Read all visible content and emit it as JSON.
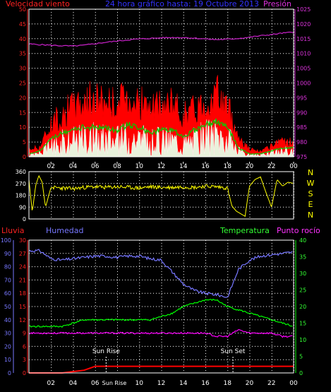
{
  "header": {
    "left_title": "Velocidad viento",
    "center_title": "24 hora gráfico hasta: 19 Octubre 2013",
    "right_title": "Presión"
  },
  "colors": {
    "wind": "#ff0000",
    "gust_area": "#ff0000",
    "avg_wind": "#00cc00",
    "bearing": "#ffff00",
    "pressure": "#cc22cc",
    "humidity": "#7777ff",
    "temperature": "#00ff00",
    "dewpoint": "#ff00ff",
    "rain": "#ff0000",
    "grid": "#ffffff",
    "background": "#000000"
  },
  "time_axis": {
    "ticks": [
      "02",
      "04",
      "06",
      "08",
      "10",
      "12",
      "14",
      "16",
      "18",
      "20",
      "22",
      "00"
    ]
  },
  "panel2_labels": [
    "N",
    "W",
    "S",
    "E",
    "N"
  ],
  "panel3_headers": {
    "rain": "Lluvia",
    "humidity": "Humedad",
    "temperature": "Temperatura",
    "dewpoint": "Punto rocío"
  },
  "annotations": {
    "sun_rise": "Sun Rise",
    "sun_set": "Sun Set",
    "sun_rise_axis": "Sun Rise"
  },
  "chart_data": [
    {
      "type": "line",
      "name": "wind",
      "y_left_ticks": [
        "0",
        "5",
        "10",
        "15",
        "20",
        "25",
        "30",
        "35",
        "40",
        "45",
        "50"
      ],
      "ylim_left": [
        0,
        50
      ],
      "y_right_ticks": [
        "975",
        "980",
        "985",
        "990",
        "995",
        "1000",
        "1005",
        "1010",
        "1015",
        "1020",
        "1025"
      ],
      "ylim_right": [
        975,
        1025
      ],
      "hours": [
        0,
        1,
        2,
        3,
        4,
        5,
        6,
        7,
        8,
        9,
        10,
        11,
        12,
        13,
        14,
        15,
        16,
        17,
        18,
        19,
        20,
        21,
        22,
        23,
        24
      ],
      "gust": [
        3,
        4,
        13,
        17,
        20,
        22,
        23,
        22,
        21,
        24,
        22,
        19,
        20,
        21,
        17,
        19,
        22,
        25,
        20,
        8,
        3,
        2,
        4,
        6,
        6
      ],
      "avg": [
        1,
        2,
        6,
        8,
        9,
        10,
        10,
        10,
        9,
        11,
        10,
        8,
        9,
        9,
        7,
        9,
        11,
        12,
        10,
        3,
        1,
        1,
        2,
        3,
        3
      ],
      "pressure": [
        1013.2,
        1013.0,
        1012.8,
        1012.6,
        1012.5,
        1012.8,
        1013.3,
        1013.8,
        1014.2,
        1014.6,
        1014.9,
        1015.1,
        1015.3,
        1015.4,
        1015.4,
        1015.2,
        1014.9,
        1014.7,
        1014.8,
        1015.1,
        1015.5,
        1016.0,
        1016.4,
        1016.9,
        1017.2
      ]
    },
    {
      "type": "line",
      "name": "bearing",
      "y_ticks": [
        "0",
        "90",
        "180",
        "270",
        "360"
      ],
      "ylim": [
        0,
        360
      ],
      "hours": [
        0,
        0.3,
        0.6,
        0.9,
        1.2,
        1.5,
        2,
        3,
        4,
        5,
        6,
        7,
        8,
        9,
        10,
        11,
        12,
        13,
        14,
        15,
        16,
        17,
        18,
        18.4,
        18.8,
        19.2,
        19.6,
        20,
        20.5,
        21,
        21.5,
        22,
        22.5,
        23,
        23.5,
        24
      ],
      "values": [
        300,
        50,
        250,
        330,
        280,
        90,
        240,
        235,
        230,
        240,
        245,
        240,
        245,
        240,
        235,
        245,
        240,
        240,
        245,
        240,
        250,
        245,
        235,
        100,
        60,
        40,
        20,
        250,
        300,
        320,
        200,
        90,
        300,
        250,
        280,
        270
      ]
    },
    {
      "type": "line",
      "name": "temperature-humidity",
      "humidity_ticks": [
        "0",
        "10",
        "20",
        "30",
        "40",
        "50",
        "60",
        "70",
        "80",
        "90",
        "100"
      ],
      "humidity_ylim": [
        0,
        100
      ],
      "rain_ticks": [
        "0",
        "3",
        "6",
        "9",
        "12",
        "15",
        "18",
        "21",
        "24",
        "27",
        "30"
      ],
      "rain_ylim": [
        0,
        30
      ],
      "temp_ticks": [
        "0",
        "5",
        "10",
        "15",
        "20",
        "25",
        "30",
        "35",
        "40"
      ],
      "temp_ylim": [
        0,
        40
      ],
      "hours": [
        0,
        1,
        2,
        3,
        4,
        5,
        6,
        7,
        8,
        9,
        10,
        11,
        12,
        13,
        14,
        15,
        16,
        17,
        18,
        19,
        20,
        21,
        22,
        23,
        24
      ],
      "humidity": [
        92,
        92,
        86,
        85,
        86,
        87,
        88,
        88,
        87,
        88,
        88,
        86,
        85,
        76,
        67,
        62,
        60,
        59,
        57,
        78,
        85,
        88,
        89,
        90,
        91
      ],
      "temperature": [
        14,
        14,
        14,
        14,
        15,
        16,
        16,
        16,
        16,
        16,
        16,
        16,
        17,
        18,
        20,
        21,
        22,
        22,
        20,
        19,
        18,
        17,
        16,
        15,
        14
      ],
      "dewpoint": [
        12,
        12,
        12,
        12,
        12,
        12,
        12,
        12,
        12,
        12,
        12,
        12,
        12,
        12,
        12,
        12,
        12,
        11,
        11,
        13,
        12,
        12,
        12,
        11,
        11
      ],
      "rain": [
        0,
        0,
        0,
        0,
        0.3,
        0.6,
        1.5,
        1.5,
        1.5,
        1.5,
        1.5,
        1.5,
        1.5,
        1.5,
        1.5,
        1.5,
        1.5,
        1.5,
        1.5,
        1.5,
        1.5,
        1.5,
        1.5,
        1.5,
        1.5
      ],
      "sun_rise_hour": 7.0,
      "sun_set_hour": 18.5
    }
  ]
}
